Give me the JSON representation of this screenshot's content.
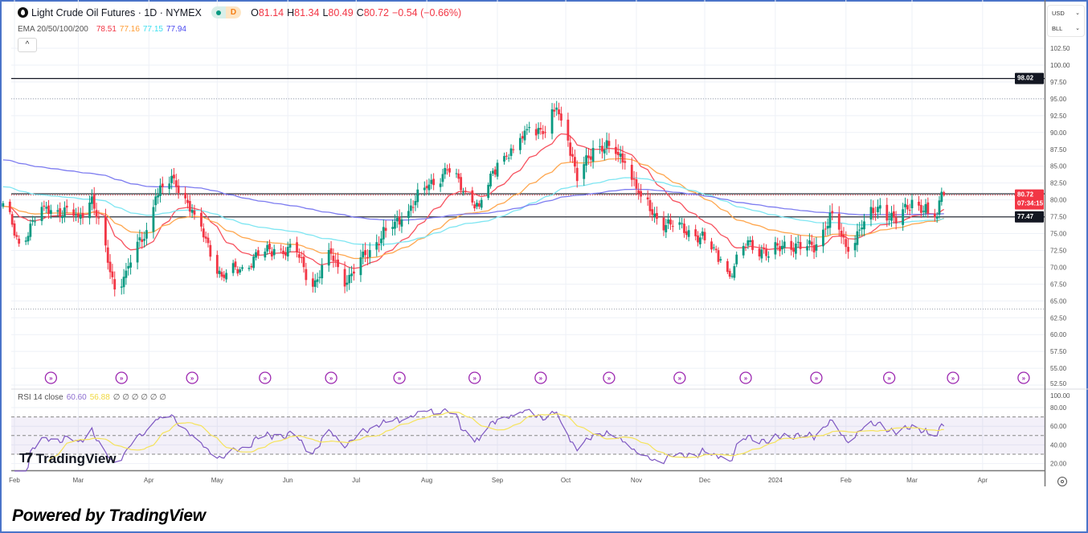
{
  "header": {
    "symbol_title": "Light Crude Oil Futures · 1D · NYMEX",
    "market_status_badge": "D",
    "ohlc": {
      "o_label": "O",
      "open": "81.14",
      "h_label": "H",
      "high": "81.34",
      "l_label": "L",
      "low": "80.49",
      "c_label": "C",
      "close": "80.72",
      "change": "−0.54 (−0.66%)"
    },
    "ema_label": "EMA 20/50/100/200",
    "ema_values": [
      "78.51",
      "77.16",
      "77.15",
      "77.94"
    ],
    "collapse_icon": "chevron-up-icon",
    "collapse_glyph": "^"
  },
  "scale_controls": {
    "currency": "USD",
    "unit": "BLL"
  },
  "rsi_header": {
    "label": "RSI 14 close",
    "rsi_value": "60.60",
    "ma_value": "56.88",
    "extra": "∅ ∅ ∅ ∅ ∅ ∅"
  },
  "price_tags": {
    "resistance": "98.02",
    "last_price": "80.72",
    "countdown": "07:34:15",
    "support": "77.47"
  },
  "logo": {
    "mark": "17",
    "text": "TradingView"
  },
  "footer": {
    "text": "Powered by TradingView"
  },
  "colors": {
    "up": "#089981",
    "down": "#f23645",
    "ema20": "#f7525f",
    "ema50": "#ffa74f",
    "ema100": "#7fe6f2",
    "ema200": "#7d7cf0",
    "rsi": "#7e57c2",
    "rsi_ma": "#f5e35b"
  },
  "chart_data": {
    "type": "candlestick",
    "title": "Light Crude Oil Futures · 1D · NYMEX",
    "ylabel": "USD/BLL",
    "ylim": [
      52.5,
      102.5
    ],
    "y_ticks": [
      "102.50",
      "100.00",
      "97.50",
      "95.00",
      "92.50",
      "90.00",
      "87.50",
      "85.00",
      "82.50",
      "80.00",
      "77.50",
      "75.00",
      "72.50",
      "70.00",
      "67.50",
      "65.00",
      "62.50",
      "60.00",
      "57.50",
      "55.00",
      "52.50"
    ],
    "x_ticks": [
      {
        "label": "Feb",
        "date": "2023-02-01"
      },
      {
        "label": "Mar",
        "date": "2023-03-01"
      },
      {
        "label": "Apr",
        "date": "2023-04-01"
      },
      {
        "label": "May",
        "date": "2023-05-01"
      },
      {
        "label": "Jun",
        "date": "2023-06-01"
      },
      {
        "label": "Jul",
        "date": "2023-07-01"
      },
      {
        "label": "Aug",
        "date": "2023-08-01"
      },
      {
        "label": "Sep",
        "date": "2023-09-01"
      },
      {
        "label": "Oct",
        "date": "2023-10-01"
      },
      {
        "label": "Nov",
        "date": "2023-11-01"
      },
      {
        "label": "Dec",
        "date": "2023-12-01"
      },
      {
        "label": "2024",
        "date": "2024-01-01"
      },
      {
        "label": "Feb",
        "date": "2024-02-01"
      },
      {
        "label": "Mar",
        "date": "2024-03-01"
      },
      {
        "label": "Apr",
        "date": "2024-04-01"
      }
    ],
    "close_anchors": [
      [
        "2023-01-27",
        79.5
      ],
      [
        "2023-02-03",
        73.5
      ],
      [
        "2023-02-14",
        79.0
      ],
      [
        "2023-03-01",
        77.5
      ],
      [
        "2023-03-07",
        80.5
      ],
      [
        "2023-03-17",
        66.7
      ],
      [
        "2023-03-22",
        69.5
      ],
      [
        "2023-03-31",
        75.5
      ],
      [
        "2023-04-04",
        80.5
      ],
      [
        "2023-04-12",
        83.2
      ],
      [
        "2023-04-21",
        77.8
      ],
      [
        "2023-05-03",
        68.6
      ],
      [
        "2023-05-12",
        70.0
      ],
      [
        "2023-05-19",
        71.7
      ],
      [
        "2023-05-26",
        72.7
      ],
      [
        "2023-06-05",
        72.2
      ],
      [
        "2023-06-12",
        67.1
      ],
      [
        "2023-06-20",
        72.0
      ],
      [
        "2023-06-27",
        67.7
      ],
      [
        "2023-07-05",
        71.8
      ],
      [
        "2023-07-14",
        75.4
      ],
      [
        "2023-07-21",
        77.1
      ],
      [
        "2023-07-31",
        81.8
      ],
      [
        "2023-08-10",
        84.4
      ],
      [
        "2023-08-18",
        81.3
      ],
      [
        "2023-08-24",
        79.0
      ],
      [
        "2023-09-01",
        85.5
      ],
      [
        "2023-09-08",
        87.5
      ],
      [
        "2023-09-15",
        90.8
      ],
      [
        "2023-09-22",
        90.0
      ],
      [
        "2023-09-27",
        93.7
      ],
      [
        "2023-10-02",
        88.8
      ],
      [
        "2023-10-06",
        82.8
      ],
      [
        "2023-10-13",
        87.7
      ],
      [
        "2023-10-20",
        88.0
      ],
      [
        "2023-10-27",
        85.5
      ],
      [
        "2023-11-03",
        80.5
      ],
      [
        "2023-11-10",
        77.2
      ],
      [
        "2023-11-17",
        76.0
      ],
      [
        "2023-11-24",
        75.5
      ],
      [
        "2023-12-01",
        74.0
      ],
      [
        "2023-12-08",
        71.2
      ],
      [
        "2023-12-12",
        68.6
      ],
      [
        "2023-12-20",
        74.0
      ],
      [
        "2023-12-29",
        71.6
      ],
      [
        "2024-01-05",
        73.8
      ],
      [
        "2024-01-12",
        72.7
      ],
      [
        "2024-01-19",
        73.4
      ],
      [
        "2024-01-26",
        78.0
      ],
      [
        "2024-02-02",
        72.3
      ],
      [
        "2024-02-09",
        76.8
      ],
      [
        "2024-02-16",
        79.2
      ],
      [
        "2024-02-23",
        76.5
      ],
      [
        "2024-03-01",
        80.0
      ],
      [
        "2024-03-08",
        78.0
      ],
      [
        "2024-03-12",
        77.5
      ],
      [
        "2024-03-14",
        81.2
      ],
      [
        "2024-03-15",
        80.72
      ]
    ],
    "last_bar": {
      "open": 81.14,
      "high": 81.34,
      "low": 80.49,
      "close": 80.72
    },
    "ema_periods": [
      20,
      50,
      100,
      200
    ],
    "ema_seed": [
      79.0,
      79.0,
      82.0,
      86.0
    ],
    "horizontal_levels": [
      {
        "price": 98.02,
        "style": "solid"
      },
      {
        "price": 95.0,
        "style": "dotted"
      },
      {
        "price": 80.9,
        "style": "solid"
      },
      {
        "price": 77.47,
        "style": "solid"
      },
      {
        "price": 63.8,
        "style": "dotted"
      }
    ],
    "event_marker_dates": [
      "2023-02-17",
      "2023-03-20",
      "2023-04-20",
      "2023-05-22",
      "2023-06-20",
      "2023-07-20",
      "2023-08-22",
      "2023-09-20",
      "2023-10-20",
      "2023-11-20",
      "2023-12-19",
      "2024-01-19",
      "2024-02-20",
      "2024-03-19",
      "2024-04-19"
    ],
    "rsi": {
      "period": 14,
      "ma_period": 14,
      "ylim": [
        0,
        100
      ],
      "y_ticks": [
        "100.00",
        "80.00",
        "60.00",
        "40.00",
        "20.00"
      ],
      "bands": [
        70,
        50,
        30
      ]
    }
  }
}
